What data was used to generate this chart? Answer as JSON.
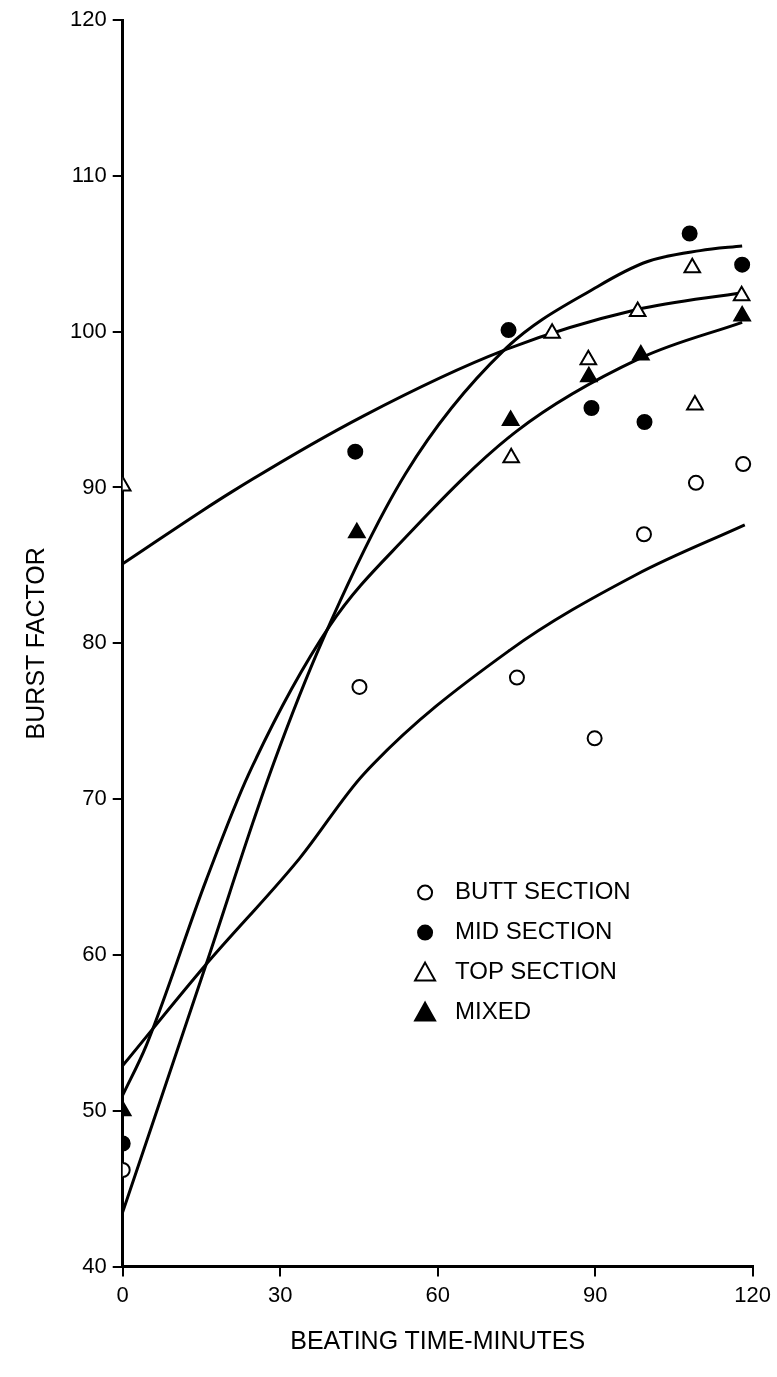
{
  "chart_data": {
    "type": "scatter",
    "xlabel": "BEATING TIME-MINUTES",
    "ylabel": "BURST FACTOR",
    "xlim": [
      0,
      120
    ],
    "xticks": [
      0,
      30,
      60,
      90,
      120
    ],
    "ylim": [
      40,
      120
    ],
    "yticks": [
      40,
      50,
      60,
      70,
      80,
      90,
      100,
      110,
      120
    ],
    "grid": false,
    "legend": "bottom right",
    "series": [
      {
        "name": "BUTT SECTION",
        "color": "#ffffff",
        "marker": "circle",
        "x": [
          0,
          45.1,
          75.1,
          89.9,
          99.3,
          109.2,
          118.2
        ],
        "values": [
          46.2,
          77.2,
          77.8,
          73.9,
          87.0,
          90.3,
          91.5
        ]
      },
      {
        "name": "MID SECTION",
        "color": "#000000",
        "marker": "circle",
        "x": [
          0,
          44.3,
          73.5,
          89.3,
          99.4,
          108,
          118
        ],
        "values": [
          47.9,
          92.3,
          100.1,
          95.1,
          94.2,
          106.3,
          104.3
        ]
      },
      {
        "name": "TOP SECTION",
        "color": "#ffffff",
        "marker": "triangle",
        "x": [
          0,
          74,
          81.8,
          88.7,
          98.1,
          109,
          108.5,
          117.9
        ],
        "values": [
          90.1,
          91.9,
          99.9,
          98.2,
          101.3,
          95.3,
          104.1,
          102.3
        ]
      },
      {
        "name": "MIXED",
        "color": "#000000",
        "marker": "triangle",
        "x": [
          0,
          44.6,
          73.9,
          88.8,
          98.7,
          118
        ],
        "values": [
          50.0,
          87.1,
          94.3,
          97.1,
          98.5,
          101.0
        ]
      },
      {
        "type": "line",
        "color": "#000000",
        "marker": "none",
        "x": [
          0,
          20.7,
          45.9,
          72.6,
          97.8,
          118
        ],
        "values": [
          85.1,
          89.7,
          94.6,
          98.8,
          101.4,
          102.5
        ]
      },
      {
        "type": "line",
        "color": "#000000",
        "marker": "none",
        "x": [
          0,
          15.9,
          28,
          38.2,
          53.9,
          72.6,
          90.5,
          100,
          110,
          118
        ],
        "values": [
          43.5,
          59.4,
          71.6,
          80.3,
          90.9,
          98.8,
          102.9,
          104.5,
          105.2,
          105.5
        ]
      },
      {
        "type": "line",
        "color": "#000000",
        "marker": "none",
        "x": [
          0,
          4.5,
          15.9,
          24,
          39.4,
          53.9,
          75,
          98.6,
          118
        ],
        "values": [
          51.0,
          54.2,
          64.8,
          71.6,
          81.1,
          86.8,
          93.6,
          98.3,
          100.6
        ]
      },
      {
        "type": "line",
        "color": "#000000",
        "marker": "none",
        "x": [
          0,
          15.9,
          33.7,
          45.9,
          73.5,
          97.8,
          118.5
        ],
        "values": [
          52.9,
          59.4,
          66.2,
          71.6,
          79.5,
          84.4,
          87.6
        ]
      }
    ]
  }
}
